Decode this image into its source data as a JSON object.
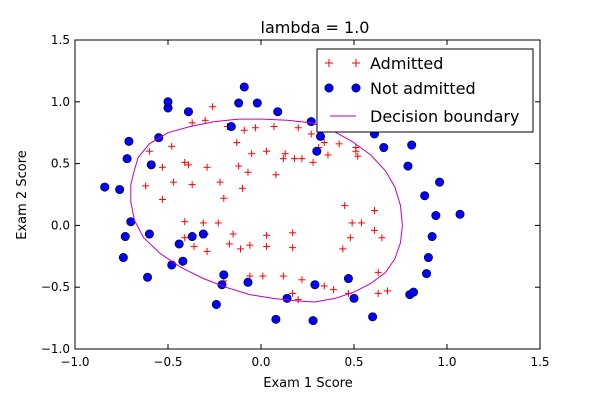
{
  "chart_data": {
    "type": "scatter",
    "title": "lambda = 1.0",
    "xlabel": "Exam 1 Score",
    "ylabel": "Exam 2 Score",
    "xlim": [
      -1.0,
      1.5
    ],
    "ylim": [
      -1.0,
      1.5
    ],
    "xticks": [
      -1.0,
      -0.5,
      0.0,
      0.5,
      1.0,
      1.5
    ],
    "yticks": [
      -1.0,
      -0.5,
      0.0,
      0.5,
      1.0,
      1.5
    ],
    "xtick_labels": [
      "−1.0",
      "−0.5",
      "0.0",
      "0.5",
      "1.0",
      "1.5"
    ],
    "ytick_labels": [
      "−1.0",
      "−0.5",
      "0.0",
      "0.5",
      "1.0",
      "1.5"
    ],
    "grid": false,
    "legend_position": "top-right",
    "series": [
      {
        "name": "Admitted",
        "marker": "plus",
        "color": "#ff0000",
        "points": [
          [
            -0.26,
            0.96
          ],
          [
            -0.3,
            0.85
          ],
          [
            -0.37,
            0.83
          ],
          [
            -0.18,
            0.8
          ],
          [
            -0.16,
            0.79
          ],
          [
            -0.09,
            0.77
          ],
          [
            -0.03,
            0.79
          ],
          [
            0.07,
            0.8
          ],
          [
            0.2,
            0.79
          ],
          [
            0.27,
            0.74
          ],
          [
            0.34,
            0.67
          ],
          [
            0.42,
            0.66
          ],
          [
            0.51,
            0.63
          ],
          [
            -0.6,
            0.6
          ],
          [
            -0.48,
            0.64
          ],
          [
            -0.39,
            0.49
          ],
          [
            -0.13,
            0.67
          ],
          [
            -0.05,
            0.58
          ],
          [
            0.03,
            0.6
          ],
          [
            0.13,
            0.58
          ],
          [
            0.18,
            0.54
          ],
          [
            0.28,
            0.51
          ],
          [
            0.31,
            0.63
          ],
          [
            0.36,
            0.57
          ],
          [
            0.52,
            0.56
          ],
          [
            -0.53,
            0.47
          ],
          [
            -0.41,
            0.51
          ],
          [
            -0.29,
            0.47
          ],
          [
            -0.12,
            0.48
          ],
          [
            -0.07,
            0.43
          ],
          [
            0.08,
            0.41
          ],
          [
            0.12,
            0.54
          ],
          [
            0.22,
            0.54
          ],
          [
            -0.62,
            0.32
          ],
          [
            -0.47,
            0.35
          ],
          [
            -0.37,
            0.33
          ],
          [
            -0.22,
            0.35
          ],
          [
            -0.1,
            0.3
          ],
          [
            -0.2,
            0.22
          ],
          [
            -0.53,
            0.21
          ],
          [
            -0.41,
            0.03
          ],
          [
            -0.31,
            0.02
          ],
          [
            -0.23,
            0.02
          ],
          [
            -0.41,
            -0.1
          ],
          [
            -0.3,
            -0.07
          ],
          [
            -0.15,
            -0.07
          ],
          [
            0.03,
            -0.08
          ],
          [
            0.17,
            -0.06
          ],
          [
            -0.36,
            -0.17
          ],
          [
            -0.29,
            -0.21
          ],
          [
            -0.17,
            -0.15
          ],
          [
            -0.11,
            -0.19
          ],
          [
            -0.06,
            -0.16
          ],
          [
            0.03,
            -0.17
          ],
          [
            0.17,
            -0.18
          ],
          [
            0.44,
            -0.19
          ],
          [
            0.48,
            -0.1
          ],
          [
            -0.06,
            -0.41
          ],
          [
            -0.2,
            -0.45
          ],
          [
            0.01,
            -0.41
          ],
          [
            0.12,
            -0.41
          ],
          [
            0.22,
            -0.44
          ],
          [
            0.39,
            -0.52
          ],
          [
            0.47,
            -0.55
          ],
          [
            0.63,
            -0.55
          ],
          [
            0.68,
            -0.53
          ],
          [
            0.34,
            -0.49
          ],
          [
            0.2,
            -0.6
          ],
          [
            0.17,
            -0.55
          ],
          [
            0.49,
            0.02
          ],
          [
            0.45,
            0.16
          ],
          [
            0.54,
            0.02
          ],
          [
            0.61,
            0.12
          ],
          [
            0.61,
            -0.04
          ],
          [
            0.65,
            -0.1
          ],
          [
            0.63,
            -0.38
          ],
          [
            0.51,
            0.6
          ]
        ]
      },
      {
        "name": "Not admitted",
        "marker": "circle",
        "color": "#0000ff",
        "points": [
          [
            -0.5,
            0.95
          ],
          [
            -0.5,
            1.0
          ],
          [
            -0.39,
            0.92
          ],
          [
            -0.16,
            0.8
          ],
          [
            -0.09,
            1.12
          ],
          [
            -0.12,
            0.99
          ],
          [
            -0.02,
            0.99
          ],
          [
            0.09,
            0.92
          ],
          [
            0.27,
            0.84
          ],
          [
            0.32,
            0.72
          ],
          [
            0.43,
            0.87
          ],
          [
            0.54,
            0.99
          ],
          [
            0.61,
            0.74
          ],
          [
            0.66,
            0.63
          ],
          [
            -0.71,
            0.68
          ],
          [
            -0.72,
            0.54
          ],
          [
            -0.59,
            0.49
          ],
          [
            -0.55,
            0.71
          ],
          [
            -0.84,
            0.31
          ],
          [
            -0.76,
            0.29
          ],
          [
            -0.7,
            0.03
          ],
          [
            -0.73,
            -0.09
          ],
          [
            -0.74,
            -0.26
          ],
          [
            -0.61,
            -0.42
          ],
          [
            -0.6,
            -0.07
          ],
          [
            -0.48,
            -0.32
          ],
          [
            -0.44,
            -0.15
          ],
          [
            -0.42,
            -0.29
          ],
          [
            -0.37,
            -0.09
          ],
          [
            -0.31,
            -0.07
          ],
          [
            -0.2,
            -0.4
          ],
          [
            -0.21,
            -0.48
          ],
          [
            -0.24,
            -0.64
          ],
          [
            -0.07,
            -0.46
          ],
          [
            0.08,
            -0.76
          ],
          [
            0.14,
            -0.59
          ],
          [
            0.28,
            -0.77
          ],
          [
            0.29,
            -0.48
          ],
          [
            0.5,
            -0.59
          ],
          [
            0.47,
            -0.43
          ],
          [
            0.6,
            -0.74
          ],
          [
            0.8,
            -0.56
          ],
          [
            0.82,
            -0.54
          ],
          [
            0.89,
            -0.39
          ],
          [
            0.9,
            -0.26
          ],
          [
            0.92,
            -0.09
          ],
          [
            0.94,
            0.08
          ],
          [
            0.96,
            0.35
          ],
          [
            0.88,
            0.24
          ],
          [
            0.81,
            0.65
          ],
          [
            0.79,
            0.48
          ],
          [
            1.07,
            0.09
          ],
          [
            0.3,
            0.6
          ]
        ]
      },
      {
        "name": "Decision boundary",
        "type": "line",
        "color": "#bf00bf",
        "closed": true,
        "points": [
          [
            -0.66,
            0.55
          ],
          [
            -0.6,
            0.66
          ],
          [
            -0.5,
            0.75
          ],
          [
            -0.38,
            0.8
          ],
          [
            -0.25,
            0.84
          ],
          [
            -0.12,
            0.86
          ],
          [
            0.01,
            0.86
          ],
          [
            0.14,
            0.85
          ],
          [
            0.27,
            0.83
          ],
          [
            0.38,
            0.77
          ],
          [
            0.49,
            0.68
          ],
          [
            0.59,
            0.57
          ],
          [
            0.67,
            0.44
          ],
          [
            0.72,
            0.31
          ],
          [
            0.75,
            0.16
          ],
          [
            0.76,
            0.0
          ],
          [
            0.75,
            -0.14
          ],
          [
            0.72,
            -0.27
          ],
          [
            0.67,
            -0.38
          ],
          [
            0.59,
            -0.47
          ],
          [
            0.5,
            -0.54
          ],
          [
            0.4,
            -0.59
          ],
          [
            0.29,
            -0.62
          ],
          [
            0.18,
            -0.61
          ],
          [
            0.06,
            -0.59
          ],
          [
            -0.06,
            -0.56
          ],
          [
            -0.19,
            -0.5
          ],
          [
            -0.31,
            -0.43
          ],
          [
            -0.43,
            -0.34
          ],
          [
            -0.54,
            -0.23
          ],
          [
            -0.63,
            -0.1
          ],
          [
            -0.68,
            0.04
          ],
          [
            -0.7,
            0.19
          ],
          [
            -0.7,
            0.33
          ],
          [
            -0.68,
            0.45
          ]
        ]
      }
    ]
  }
}
